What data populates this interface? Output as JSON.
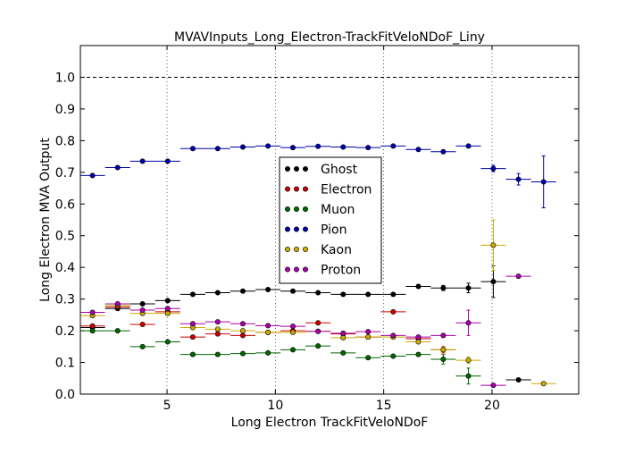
{
  "chart_data": {
    "type": "scatter",
    "title": "MVAVInputs_Long_Electron-TrackFitVeloNDoF_Liny",
    "xlabel": "Long Electron TrackFitVeloNDoF",
    "ylabel": "Long Electron MVA Output",
    "xlim": [
      1,
      24
    ],
    "ylim": [
      0.0,
      1.1
    ],
    "xticks": [
      5,
      10,
      15,
      20
    ],
    "yticks": [
      0.0,
      0.1,
      0.2,
      0.3,
      0.4,
      0.5,
      0.6,
      0.7,
      0.8,
      0.9,
      1.0
    ],
    "reference_line": {
      "y": 1.0,
      "style": "dashed"
    },
    "grid": "x dotted",
    "legend_position": "center",
    "series": [
      {
        "name": "Ghost",
        "color": "#000000",
        "x": [
          1.56,
          2.72,
          3.87,
          5.03,
          6.19,
          7.34,
          8.5,
          9.66,
          10.81,
          11.97,
          13.13,
          14.28,
          15.44,
          16.6,
          17.75,
          18.91,
          20.06,
          21.22
        ],
        "y": [
          0.21,
          0.27,
          0.285,
          0.295,
          0.315,
          0.32,
          0.325,
          0.33,
          0.325,
          0.32,
          0.315,
          0.315,
          0.315,
          0.34,
          0.335,
          0.335,
          0.355,
          0.045
        ],
        "err": [
          0.004,
          0.003,
          0.003,
          0.003,
          0.003,
          0.003,
          0.003,
          0.003,
          0.003,
          0.003,
          0.003,
          0.003,
          0.004,
          0.005,
          0.008,
          0.015,
          0.05,
          0.004
        ]
      },
      {
        "name": "Electron",
        "color": "#cc0000",
        "x": [
          1.56,
          2.72,
          3.87,
          5.03,
          6.19,
          7.34,
          8.5,
          9.66,
          10.81,
          11.97,
          13.13,
          14.28,
          15.44,
          16.6,
          17.75
        ],
        "y": [
          0.215,
          0.275,
          0.22,
          0.26,
          0.18,
          0.19,
          0.185,
          0.195,
          0.2,
          0.225,
          0.19,
          0.18,
          0.26,
          0.175,
          0.14
        ],
        "err": [
          0.004,
          0.003,
          0.003,
          0.003,
          0.003,
          0.003,
          0.003,
          0.003,
          0.003,
          0.003,
          0.003,
          0.003,
          0.004,
          0.005,
          0.01
        ]
      },
      {
        "name": "Muon",
        "color": "#006600",
        "x": [
          1.56,
          2.72,
          3.87,
          5.03,
          6.19,
          7.34,
          8.5,
          9.66,
          10.81,
          11.97,
          13.13,
          14.28,
          15.44,
          16.6,
          17.75,
          18.91
        ],
        "y": [
          0.2,
          0.2,
          0.15,
          0.165,
          0.125,
          0.125,
          0.128,
          0.13,
          0.14,
          0.152,
          0.13,
          0.115,
          0.12,
          0.125,
          0.11,
          0.057
        ],
        "err": [
          0.004,
          0.003,
          0.003,
          0.003,
          0.003,
          0.003,
          0.003,
          0.003,
          0.003,
          0.003,
          0.003,
          0.003,
          0.003,
          0.005,
          0.015,
          0.025
        ]
      },
      {
        "name": "Pion",
        "color": "#0000aa",
        "x": [
          1.56,
          2.72,
          3.87,
          5.03,
          6.19,
          7.34,
          8.5,
          9.66,
          10.81,
          11.97,
          13.13,
          14.28,
          15.44,
          16.6,
          17.75,
          18.91,
          20.06,
          21.22,
          22.38
        ],
        "y": [
          0.69,
          0.715,
          0.735,
          0.735,
          0.775,
          0.775,
          0.78,
          0.783,
          0.778,
          0.782,
          0.78,
          0.778,
          0.783,
          0.772,
          0.765,
          0.783,
          0.712,
          0.678,
          0.67
        ],
        "err": [
          0.003,
          0.003,
          0.003,
          0.003,
          0.003,
          0.003,
          0.003,
          0.003,
          0.003,
          0.003,
          0.003,
          0.003,
          0.003,
          0.003,
          0.003,
          0.003,
          0.01,
          0.018,
          0.082
        ]
      },
      {
        "name": "Kaon",
        "color": "#ccaa00",
        "x": [
          1.56,
          2.72,
          3.87,
          5.03,
          6.19,
          7.34,
          8.5,
          9.66,
          10.81,
          11.97,
          13.13,
          14.28,
          15.44,
          16.6,
          17.75,
          18.91,
          20.06,
          22.38
        ],
        "y": [
          0.248,
          0.28,
          0.255,
          0.255,
          0.21,
          0.205,
          0.2,
          0.195,
          0.195,
          0.198,
          0.178,
          0.18,
          0.18,
          0.165,
          0.14,
          0.107,
          0.47,
          0.033
        ],
        "err": [
          0.004,
          0.003,
          0.003,
          0.003,
          0.003,
          0.003,
          0.003,
          0.003,
          0.003,
          0.003,
          0.003,
          0.003,
          0.004,
          0.005,
          0.008,
          0.01,
          0.08,
          0.004
        ]
      },
      {
        "name": "Proton",
        "color": "#aa00aa",
        "x": [
          1.56,
          2.72,
          3.87,
          5.03,
          6.19,
          7.34,
          8.5,
          9.66,
          10.81,
          11.97,
          13.13,
          14.28,
          15.44,
          16.6,
          17.75,
          18.91,
          20.06,
          21.22
        ],
        "y": [
          0.258,
          0.285,
          0.265,
          0.27,
          0.222,
          0.228,
          0.222,
          0.216,
          0.214,
          0.198,
          0.192,
          0.197,
          0.185,
          0.18,
          0.185,
          0.225,
          0.028,
          0.372
        ],
        "err": [
          0.004,
          0.003,
          0.003,
          0.003,
          0.003,
          0.003,
          0.003,
          0.003,
          0.003,
          0.003,
          0.003,
          0.003,
          0.004,
          0.005,
          0.006,
          0.04,
          0.004,
          0.004
        ]
      }
    ]
  }
}
